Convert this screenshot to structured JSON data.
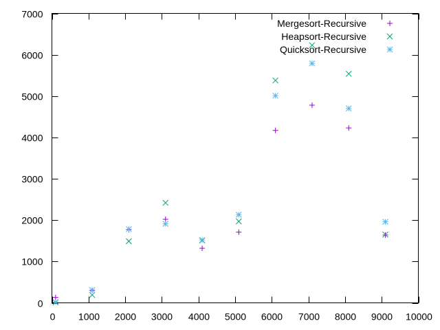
{
  "chart_data": {
    "type": "scatter",
    "title": "",
    "xlabel": "",
    "ylabel": "",
    "xlim": [
      0,
      10000
    ],
    "ylim": [
      0,
      7000
    ],
    "x_ticks": [
      0,
      1000,
      2000,
      3000,
      4000,
      5000,
      6000,
      7000,
      8000,
      9000,
      10000
    ],
    "y_ticks": [
      0,
      1000,
      2000,
      3000,
      4000,
      5000,
      6000,
      7000
    ],
    "grid": false,
    "legend_position": "top-right",
    "series": [
      {
        "name": "Mergesort-Recursive",
        "marker": "plus",
        "color": "#9400d3",
        "points": [
          {
            "x": 100,
            "y": 130
          },
          {
            "x": 1100,
            "y": 300
          },
          {
            "x": 2100,
            "y": 1770
          },
          {
            "x": 3100,
            "y": 2020
          },
          {
            "x": 4100,
            "y": 1320
          },
          {
            "x": 5100,
            "y": 1710
          },
          {
            "x": 6100,
            "y": 4170
          },
          {
            "x": 7100,
            "y": 4780
          },
          {
            "x": 8100,
            "y": 4230
          },
          {
            "x": 9100,
            "y": 1640
          }
        ]
      },
      {
        "name": "Heapsort-Recursive",
        "marker": "cross",
        "color": "#009e73",
        "points": [
          {
            "x": 100,
            "y": 10
          },
          {
            "x": 1100,
            "y": 190
          },
          {
            "x": 2100,
            "y": 1490
          },
          {
            "x": 3100,
            "y": 2420
          },
          {
            "x": 4100,
            "y": 1510
          },
          {
            "x": 5100,
            "y": 1970
          },
          {
            "x": 6100,
            "y": 5380
          },
          {
            "x": 7100,
            "y": 6230
          },
          {
            "x": 8100,
            "y": 5540
          },
          {
            "x": 9100,
            "y": 1650
          }
        ]
      },
      {
        "name": "Quicksort-Recursive",
        "marker": "star",
        "color": "#56b4e9",
        "points": [
          {
            "x": 100,
            "y": 20
          },
          {
            "x": 1100,
            "y": 310
          },
          {
            "x": 2100,
            "y": 1780
          },
          {
            "x": 3100,
            "y": 1910
          },
          {
            "x": 4100,
            "y": 1520
          },
          {
            "x": 5100,
            "y": 2130
          },
          {
            "x": 6100,
            "y": 5010
          },
          {
            "x": 7100,
            "y": 5790
          },
          {
            "x": 8100,
            "y": 4700
          },
          {
            "x": 9100,
            "y": 1960
          }
        ]
      }
    ]
  }
}
